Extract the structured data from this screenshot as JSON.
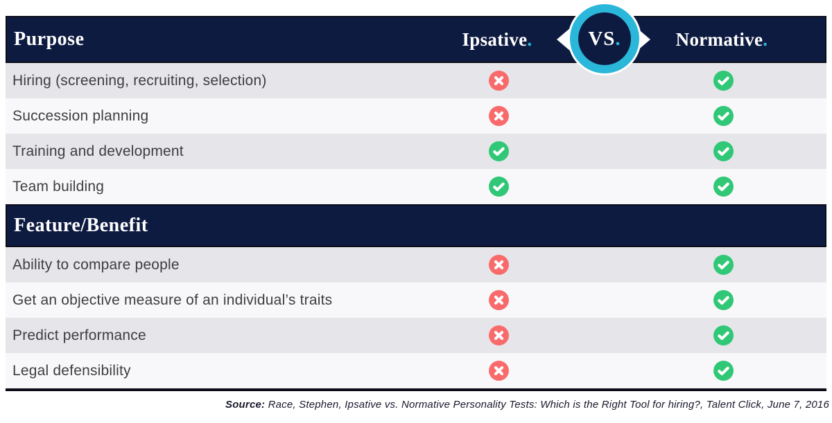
{
  "header": {
    "ipsative": {
      "text": "Ipsative",
      "period": "."
    },
    "vs": {
      "text": "VS",
      "period": "."
    },
    "normative": {
      "text": "Normative",
      "period": "."
    }
  },
  "table": {
    "sections": [
      {
        "header": "Purpose",
        "rows": [
          {
            "label": "Hiring (screening, recruiting, selection)",
            "ipsative": false,
            "normative": true
          },
          {
            "label": "Succession planning",
            "ipsative": false,
            "normative": true
          },
          {
            "label": "Training and development",
            "ipsative": true,
            "normative": true
          },
          {
            "label": "Team building",
            "ipsative": true,
            "normative": true
          }
        ]
      },
      {
        "header": "Feature/Benefit",
        "rows": [
          {
            "label": "Ability to compare people",
            "ipsative": false,
            "normative": true
          },
          {
            "label": "Get an objective measure of an individual’s traits",
            "ipsative": false,
            "normative": true
          },
          {
            "label": "Predict performance",
            "ipsative": false,
            "normative": true
          },
          {
            "label": "Legal defensibility",
            "ipsative": false,
            "normative": true
          }
        ]
      }
    ]
  },
  "source": {
    "prefix": "Source:",
    "text": " Race, Stephen, Ipsative vs. Normative Personality Tests: Which is the Right Tool for hiring?, Talent Click, June 7, 2016"
  },
  "icons": {
    "cross": "cross-icon",
    "check": "check-icon"
  },
  "colors": {
    "navy": "#0e1b41",
    "cyan": "#2ab7d9",
    "green": "#30c877",
    "red": "#f96b6b",
    "row_gray": "#e5e5ea",
    "row_light": "#f8f8fa",
    "border_dark": "#0c0c18",
    "text_dark": "#3e3e40",
    "source_text": "#18182c"
  }
}
